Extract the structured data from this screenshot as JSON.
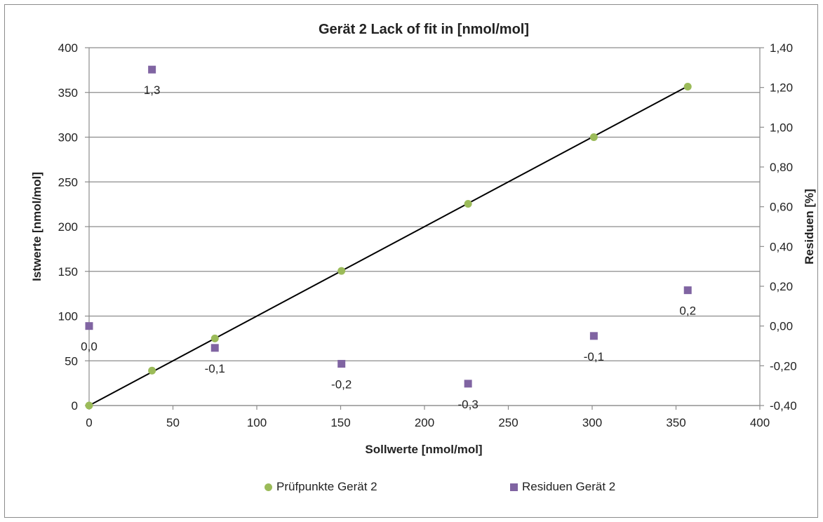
{
  "chart_data": {
    "type": "scatter",
    "title": "Gerät 2  Lack of fit in [nmol/mol]",
    "xlabel": "Sollwerte [nmol/mol]",
    "ylabel": "Istwerte [nmol/mol]",
    "y2label": "Residuen [%]",
    "xlim": [
      0,
      400
    ],
    "ylim": [
      0,
      400
    ],
    "y2lim": [
      -0.4,
      1.4
    ],
    "x_ticks": [
      "0",
      "50",
      "100",
      "150",
      "200",
      "250",
      "300",
      "350",
      "400"
    ],
    "y_ticks": [
      "0",
      "50",
      "100",
      "150",
      "200",
      "250",
      "300",
      "350",
      "400"
    ],
    "y2_ticks": [
      "-0,40",
      "-0,20",
      "0,00",
      "0,20",
      "0,40",
      "0,60",
      "0,80",
      "1,00",
      "1,20",
      "1,40"
    ],
    "grid": true,
    "legend_position": "bottom",
    "series": [
      {
        "name": "Prüfpunkte Gerät 2",
        "marker": "circle",
        "color": "#9bbb59",
        "axis": "left",
        "points": [
          [
            0,
            0
          ],
          [
            37.5,
            39
          ],
          [
            75,
            75
          ],
          [
            150.5,
            150.5
          ],
          [
            226,
            225.5
          ],
          [
            301,
            300
          ],
          [
            357,
            356.5
          ]
        ]
      },
      {
        "name": "Residuen Gerät 2",
        "marker": "square",
        "color": "#8064a2",
        "axis": "right",
        "points": [
          [
            0,
            0.0
          ],
          [
            37.5,
            1.29
          ],
          [
            75,
            -0.11
          ],
          [
            150.5,
            -0.19
          ],
          [
            226,
            -0.29
          ],
          [
            301,
            -0.05
          ],
          [
            357,
            0.18
          ]
        ],
        "labels": [
          "0,0",
          "1,3",
          "-0,1",
          "-0,2",
          "-0,3",
          "-0,1",
          "0,2"
        ]
      }
    ],
    "fit_line": {
      "color": "#000000",
      "from": [
        0,
        0
      ],
      "to": [
        357,
        357
      ]
    }
  }
}
